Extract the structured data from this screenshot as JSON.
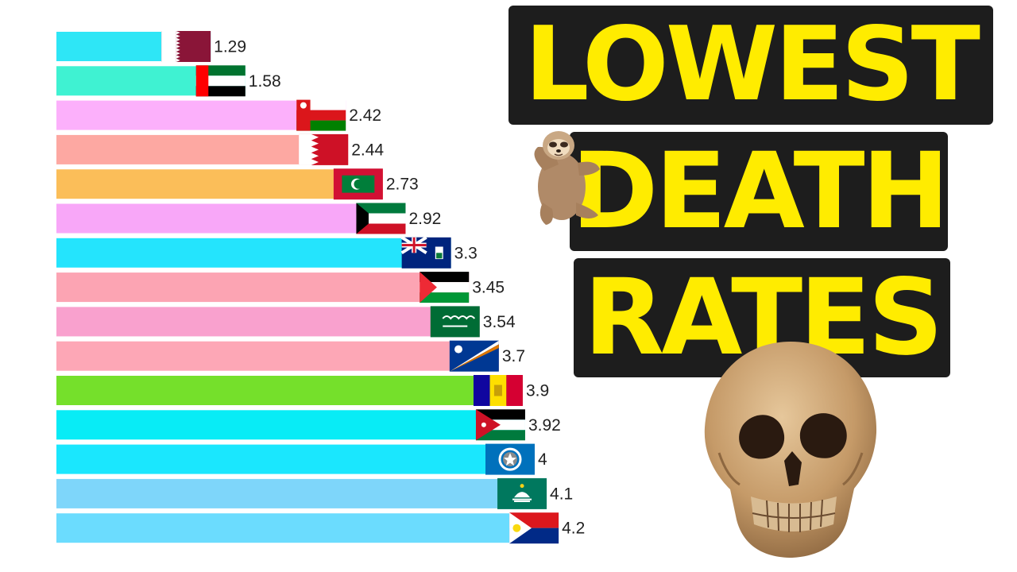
{
  "title": {
    "line1": "LOWEST",
    "line2": "DEATH",
    "line3": "RATES"
  },
  "chart_data": {
    "type": "bar",
    "orientation": "horizontal",
    "values": [
      1.29,
      1.58,
      2.42,
      2.44,
      2.73,
      2.92,
      3.3,
      3.45,
      3.54,
      3.7,
      3.9,
      3.92,
      4,
      4.1,
      4.2
    ],
    "labels": [
      "1.29",
      "1.58",
      "2.42",
      "2.44",
      "2.73",
      "2.92",
      "3.3",
      "3.45",
      "3.54",
      "3.7",
      "3.9",
      "3.92",
      "4",
      "4.1",
      "4.2"
    ],
    "bar_colors": [
      "#2ee6f6",
      "#3ff2d2",
      "#fcb0fb",
      "#fda8a2",
      "#fbbe59",
      "#f8a7f8",
      "#24e4fd",
      "#fca4b3",
      "#f9a1ce",
      "#fda7b6",
      "#75e02b",
      "#08ecf6",
      "#1ae7fe",
      "#7ed6fa",
      "#6bdcfe"
    ],
    "flags": [
      "flag-qatar",
      "flag-uae",
      "flag-oman",
      "flag-bahrain",
      "flag-maldives",
      "flag-kuwait",
      "flag-cayman-islands",
      "flag-palestine",
      "flag-saudi-arabia",
      "flag-marshall-islands",
      "flag-andorra",
      "flag-jordan",
      "flag-northern-mariana-islands",
      "flag-macau",
      "flag-sint-maarten"
    ],
    "axis_visible": false,
    "grid": false,
    "legend": "none"
  },
  "art": {
    "sloth": "sloth-illustration",
    "skull": "skull-illustration"
  }
}
